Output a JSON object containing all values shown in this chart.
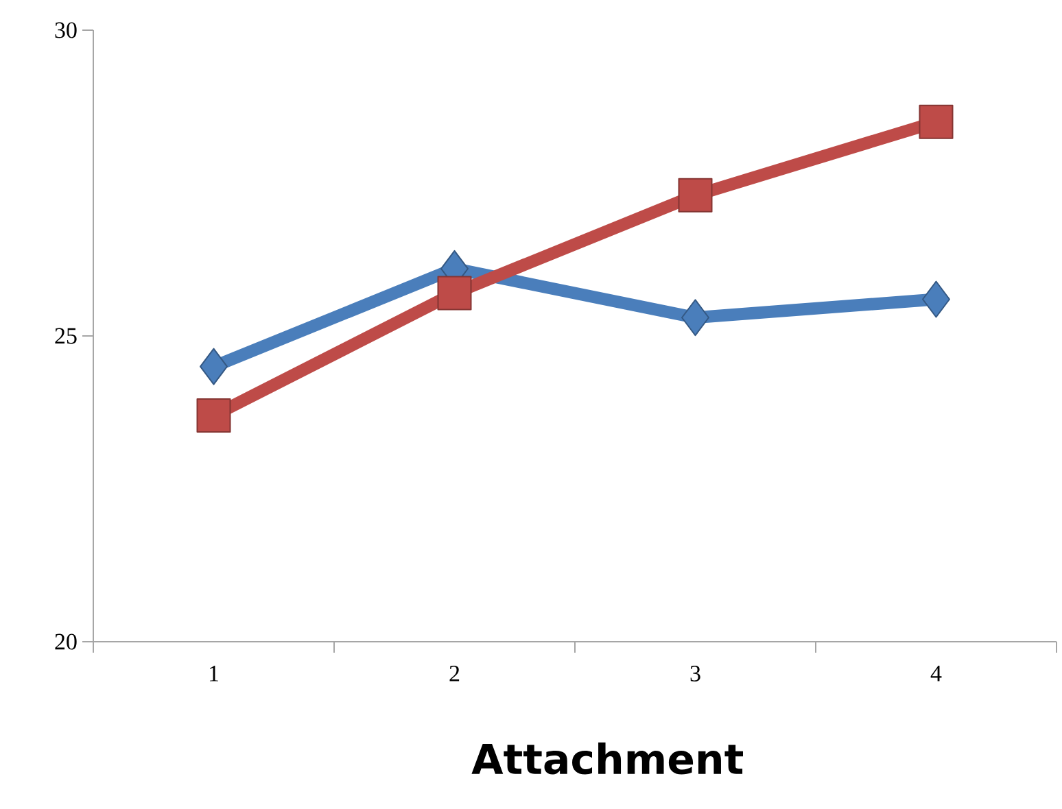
{
  "chart_data": {
    "type": "line",
    "xlabel": "Attachment",
    "categories": [
      "1",
      "2",
      "3",
      "4"
    ],
    "series": [
      {
        "color": "#4a7ebb",
        "marker": "diamond",
        "values": [
          24.5,
          26.1,
          25.3,
          25.6
        ]
      },
      {
        "color": "#be4b48",
        "marker": "square",
        "values": [
          23.7,
          25.7,
          27.3,
          28.5
        ]
      }
    ],
    "ylim": [
      20,
      30
    ],
    "yticks": [
      20,
      25,
      30
    ],
    "line_style": "solid"
  }
}
